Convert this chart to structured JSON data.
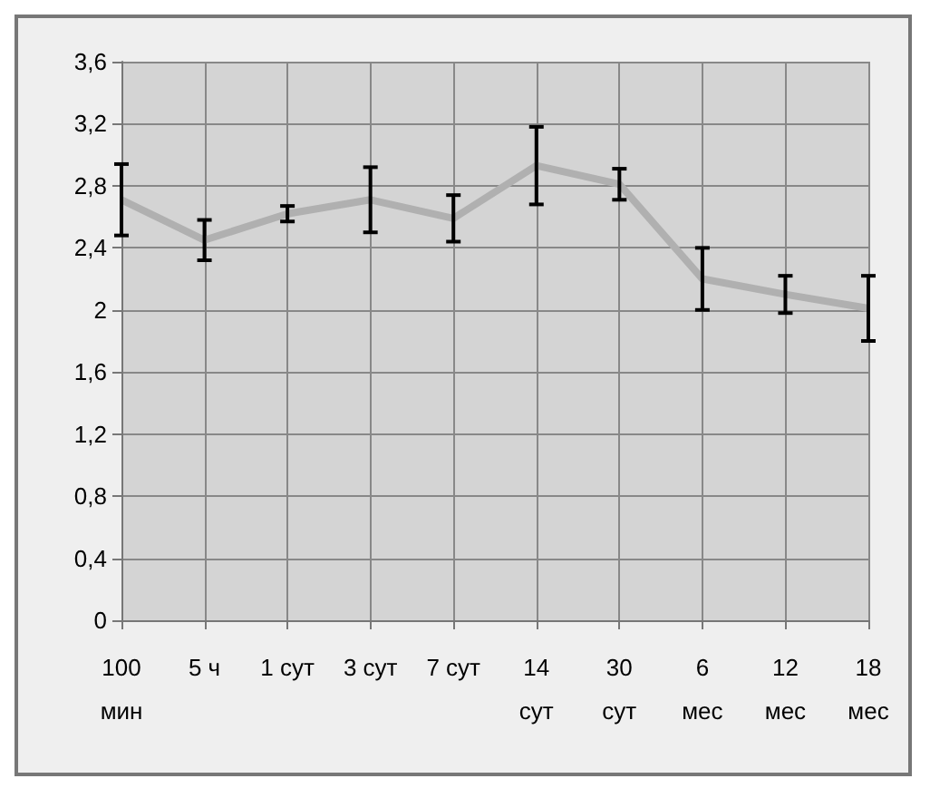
{
  "chart_data": {
    "type": "line",
    "categories": [
      "100 мин",
      "5 ч",
      "1 сут",
      "3 сут",
      "7 сут",
      "14 сут",
      "30 сут",
      "6 мес",
      "12 мес",
      "18 мес"
    ],
    "series": [
      {
        "color": "#b0b0b0",
        "values": [
          2.71,
          2.45,
          2.62,
          2.71,
          2.59,
          2.93,
          2.81,
          2.2,
          2.1,
          2.01
        ],
        "errors": [
          0.23,
          0.13,
          0.05,
          0.21,
          0.15,
          0.25,
          0.1,
          0.2,
          0.12,
          0.21
        ]
      }
    ],
    "ylim": [
      0,
      3.6
    ],
    "yticks": [
      0,
      {
        "value": 0.4,
        "label": "0,4"
      },
      {
        "value": 0.8,
        "label": "0,8"
      },
      {
        "value": 1.2,
        "label": "1,2"
      },
      {
        "value": 1.6,
        "label": "1,6"
      },
      2,
      {
        "value": 2.4,
        "label": "2,4"
      },
      {
        "value": 2.8,
        "label": "2,8"
      },
      {
        "value": 3.2,
        "label": "3,2"
      },
      {
        "value": 3.6,
        "label": "3,6"
      }
    ],
    "grid": true,
    "marker": "none",
    "line_style": "solid"
  }
}
